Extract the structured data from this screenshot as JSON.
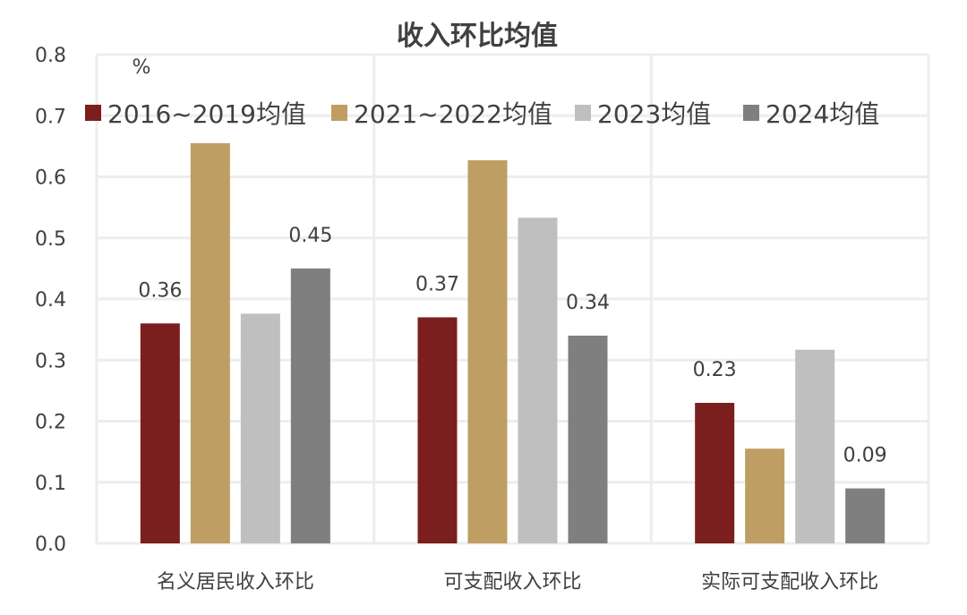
{
  "chart_data": {
    "type": "bar",
    "title": "收入环比均值",
    "unit": "%",
    "categories": [
      "名义居民收入环比",
      "可支配收入环比",
      "实际可支配收入环比"
    ],
    "series": [
      {
        "name": "2016~2019均值",
        "values": [
          0.36,
          0.37,
          0.23
        ],
        "color": "#7B1E1E"
      },
      {
        "name": "2021~2022均值",
        "values": [
          0.655,
          0.627,
          0.155
        ],
        "color": "#BF9E63"
      },
      {
        "name": "2023均值",
        "values": [
          0.376,
          0.533,
          0.317
        ],
        "color": "#BFBFBF"
      },
      {
        "name": "2024均值",
        "values": [
          0.45,
          0.34,
          0.09
        ],
        "color": "#7F7F7F"
      }
    ],
    "data_labels": [
      {
        "series": 0,
        "category": 0,
        "text": "0.36"
      },
      {
        "series": 3,
        "category": 0,
        "text": "0.45"
      },
      {
        "series": 0,
        "category": 1,
        "text": "0.37"
      },
      {
        "series": 3,
        "category": 1,
        "text": "0.34"
      },
      {
        "series": 0,
        "category": 2,
        "text": "0.23"
      },
      {
        "series": 3,
        "category": 2,
        "text": "0.09"
      }
    ],
    "ylim": [
      0,
      0.8
    ],
    "yticks": [
      "0.0",
      "0.1",
      "0.2",
      "0.3",
      "0.4",
      "0.5",
      "0.6",
      "0.7",
      "0.8"
    ],
    "grid": true,
    "legend": "top"
  }
}
